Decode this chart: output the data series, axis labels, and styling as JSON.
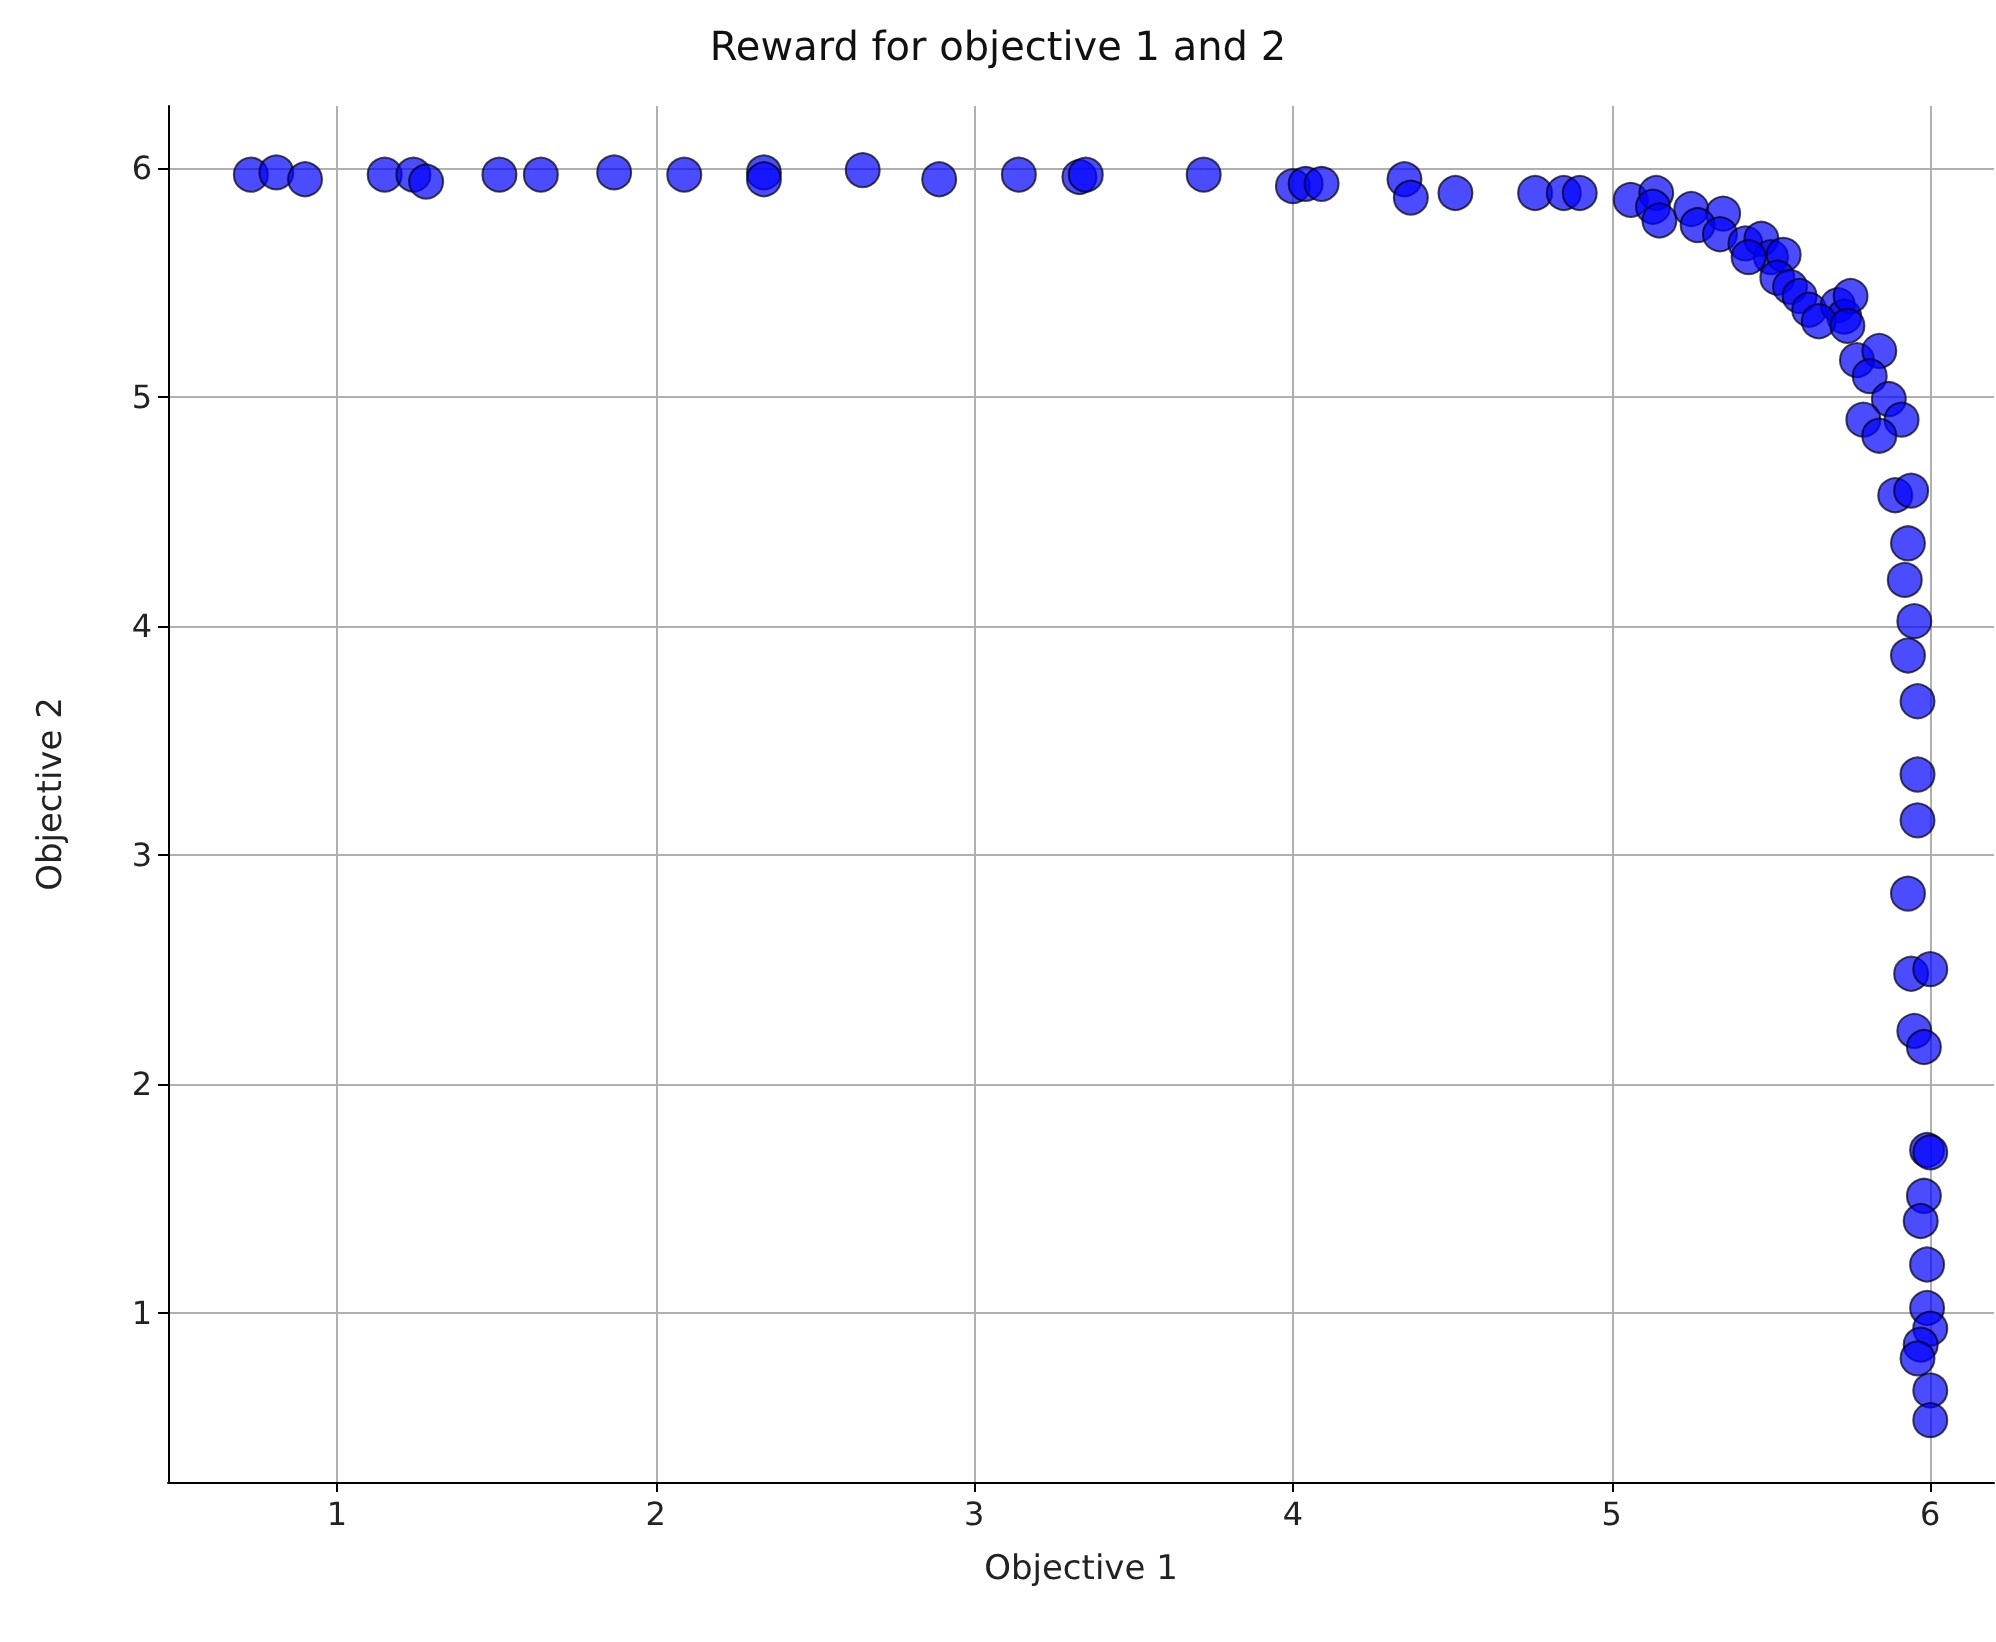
{
  "chart_data": {
    "type": "scatter",
    "title": "Reward for objective 1 and 2",
    "xlabel": "Objective 1",
    "ylabel": "Objective 2",
    "xlim": [
      0.47,
      6.2
    ],
    "ylim": [
      0.26,
      6.27
    ],
    "xticks": [
      1,
      2,
      3,
      4,
      5,
      6
    ],
    "yticks": [
      1,
      2,
      3,
      4,
      5,
      6
    ],
    "grid": true,
    "marker": "circle",
    "series": [
      {
        "color": "#0000ff",
        "x": [
          0.73,
          0.81,
          0.9,
          1.15,
          1.24,
          1.28,
          1.51,
          1.64,
          1.87,
          2.09,
          2.34,
          2.34,
          2.65,
          2.89,
          3.14,
          3.33,
          3.35,
          3.72,
          4.0,
          4.04,
          4.09,
          4.35,
          4.37,
          4.51,
          4.76,
          4.85,
          4.9,
          5.06,
          5.14,
          5.13,
          5.15,
          5.25,
          5.35,
          5.27,
          5.34,
          5.42,
          5.47,
          5.5,
          5.43,
          5.54,
          5.52,
          5.56,
          5.59,
          5.62,
          5.71,
          5.73,
          5.75,
          5.65,
          5.74,
          5.77,
          5.84,
          5.81,
          5.87,
          5.79,
          5.91,
          5.84,
          5.89,
          5.94,
          5.93,
          5.92,
          5.95,
          5.93,
          5.96,
          5.96,
          5.96,
          5.93,
          5.94,
          6.0,
          5.95,
          5.98,
          5.99,
          6.0,
          5.98,
          5.97,
          5.99,
          5.99,
          6.0,
          5.97,
          5.96,
          6.0,
          6.0
        ],
        "values": [
          5.97,
          5.98,
          5.95,
          5.97,
          5.97,
          5.94,
          5.97,
          5.97,
          5.98,
          5.97,
          5.98,
          5.95,
          5.99,
          5.95,
          5.97,
          5.96,
          5.97,
          5.97,
          5.92,
          5.93,
          5.93,
          5.95,
          5.87,
          5.89,
          5.89,
          5.89,
          5.89,
          5.86,
          5.89,
          5.83,
          5.77,
          5.82,
          5.8,
          5.75,
          5.71,
          5.67,
          5.69,
          5.61,
          5.61,
          5.62,
          5.52,
          5.48,
          5.44,
          5.38,
          5.4,
          5.35,
          5.44,
          5.33,
          5.31,
          5.16,
          5.2,
          5.09,
          4.99,
          4.9,
          4.9,
          4.83,
          4.57,
          4.59,
          4.36,
          4.2,
          4.02,
          3.87,
          3.67,
          3.35,
          3.15,
          2.83,
          2.48,
          2.5,
          2.23,
          2.16,
          1.71,
          1.7,
          1.51,
          1.4,
          1.21,
          1.02,
          0.93,
          0.86,
          0.8,
          0.66,
          0.53
        ]
      }
    ]
  }
}
